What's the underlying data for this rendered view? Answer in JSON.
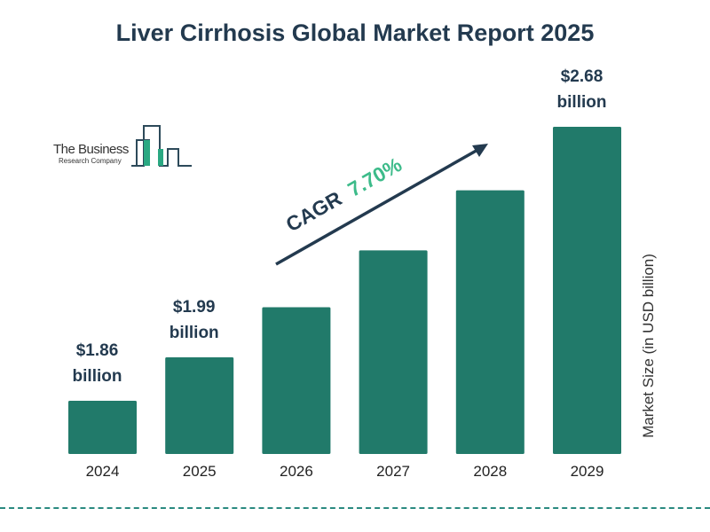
{
  "chart_data": {
    "type": "bar",
    "title": "Liver Cirrhosis Global Market Report 2025",
    "categories": [
      "2024",
      "2025",
      "2026",
      "2027",
      "2028",
      "2029"
    ],
    "values": [
      1.86,
      1.99,
      2.14,
      2.31,
      2.49,
      2.68
    ],
    "data_labels": [
      [
        "$1.86",
        "billion"
      ],
      [
        "$1.99",
        "billion"
      ],
      null,
      null,
      null,
      [
        "$2.68",
        "billion"
      ]
    ],
    "ylabel": "Market Size (in USD billion)",
    "xlabel": "",
    "annotation": {
      "prefix": "CAGR",
      "value": "7.70%"
    },
    "grid": false,
    "bar_color": "#217a6a",
    "text_color": "#233a4f",
    "accent_color": "#3dbb8a"
  },
  "logo": {
    "line1": "The Business",
    "line2": "Research Company"
  }
}
